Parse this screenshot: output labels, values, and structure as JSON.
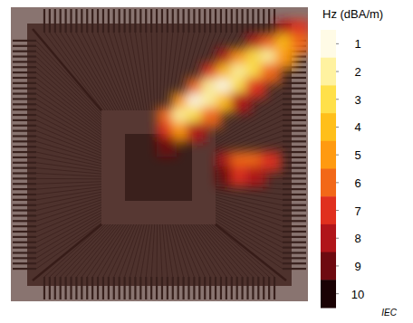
{
  "chart_data": {
    "type": "heatmap",
    "xlim": [
      0,
      20
    ],
    "ylim": [
      0,
      20
    ],
    "tick_labels": false,
    "cells": [
      [
        null,
        null,
        null,
        null,
        null,
        null,
        null,
        null,
        null,
        null,
        null,
        null,
        null,
        null,
        null,
        null,
        null,
        null,
        null,
        null
      ],
      [
        null,
        null,
        null,
        null,
        null,
        null,
        null,
        null,
        null,
        null,
        null,
        null,
        null,
        null,
        null,
        null,
        null,
        null,
        8,
        7
      ],
      [
        null,
        null,
        null,
        null,
        null,
        null,
        null,
        null,
        null,
        null,
        null,
        null,
        null,
        null,
        null,
        null,
        8,
        6,
        4,
        6
      ],
      [
        null,
        null,
        null,
        null,
        null,
        null,
        null,
        null,
        null,
        null,
        null,
        null,
        null,
        null,
        8,
        5,
        3,
        2,
        5,
        null
      ],
      [
        null,
        null,
        null,
        null,
        null,
        null,
        null,
        null,
        null,
        null,
        null,
        null,
        null,
        7,
        4,
        2,
        3,
        6,
        null,
        null
      ],
      [
        null,
        null,
        null,
        null,
        null,
        null,
        null,
        null,
        null,
        null,
        null,
        null,
        6,
        2,
        1,
        3,
        7,
        null,
        null,
        null
      ],
      [
        null,
        null,
        null,
        null,
        null,
        null,
        null,
        null,
        null,
        null,
        null,
        5,
        1,
        2,
        4,
        8,
        null,
        null,
        null,
        null
      ],
      [
        null,
        null,
        null,
        null,
        null,
        null,
        null,
        null,
        null,
        null,
        6,
        2,
        3,
        6,
        null,
        null,
        null,
        null,
        null,
        null
      ],
      [
        null,
        null,
        null,
        null,
        null,
        null,
        null,
        null,
        null,
        null,
        7,
        5,
        8,
        null,
        null,
        null,
        null,
        null,
        null,
        null
      ],
      [
        null,
        null,
        null,
        null,
        null,
        null,
        null,
        null,
        null,
        null,
        9,
        null,
        null,
        null,
        null,
        null,
        null,
        null,
        null,
        null
      ],
      [
        null,
        null,
        null,
        null,
        null,
        null,
        null,
        null,
        null,
        null,
        null,
        null,
        null,
        null,
        8,
        6,
        6,
        7,
        null,
        null
      ],
      [
        null,
        null,
        null,
        null,
        null,
        null,
        null,
        null,
        null,
        null,
        null,
        null,
        null,
        null,
        9,
        7,
        8,
        null,
        null,
        null
      ],
      [
        null,
        null,
        null,
        null,
        null,
        null,
        null,
        null,
        null,
        null,
        null,
        null,
        null,
        null,
        null,
        null,
        null,
        null,
        null,
        null
      ],
      [
        null,
        null,
        null,
        null,
        null,
        null,
        null,
        null,
        null,
        null,
        null,
        null,
        null,
        null,
        null,
        null,
        null,
        null,
        null,
        null
      ],
      [
        null,
        null,
        null,
        null,
        null,
        null,
        null,
        null,
        null,
        null,
        null,
        null,
        null,
        null,
        null,
        null,
        null,
        null,
        null,
        null
      ],
      [
        null,
        null,
        null,
        null,
        null,
        null,
        null,
        null,
        null,
        null,
        null,
        null,
        null,
        null,
        null,
        null,
        null,
        null,
        null,
        null
      ],
      [
        null,
        null,
        null,
        null,
        null,
        null,
        null,
        null,
        null,
        null,
        null,
        null,
        null,
        null,
        null,
        null,
        null,
        null,
        null,
        null
      ],
      [
        null,
        null,
        null,
        null,
        null,
        null,
        null,
        null,
        null,
        null,
        null,
        null,
        null,
        null,
        null,
        null,
        null,
        null,
        null,
        null
      ],
      [
        null,
        null,
        null,
        null,
        null,
        null,
        null,
        null,
        null,
        null,
        null,
        null,
        null,
        null,
        null,
        null,
        null,
        null,
        null,
        null
      ],
      [
        null,
        null,
        null,
        null,
        null,
        null,
        null,
        null,
        null,
        null,
        null,
        null,
        null,
        null,
        null,
        null,
        null,
        null,
        null,
        null
      ]
    ],
    "colorbar": {
      "label": "Hz (dBA/m)",
      "range": [
        0.5,
        10.5
      ],
      "ticks": [
        1,
        2,
        3,
        4,
        5,
        6,
        7,
        8,
        9,
        10
      ],
      "colors": [
        "#fffbe6",
        "#fff2a0",
        "#ffe04a",
        "#ffbf1a",
        "#ff9a10",
        "#f26818",
        "#e0301e",
        "#b0151a",
        "#6e0a10",
        "#1a0204"
      ]
    },
    "annotation": "IEC"
  }
}
